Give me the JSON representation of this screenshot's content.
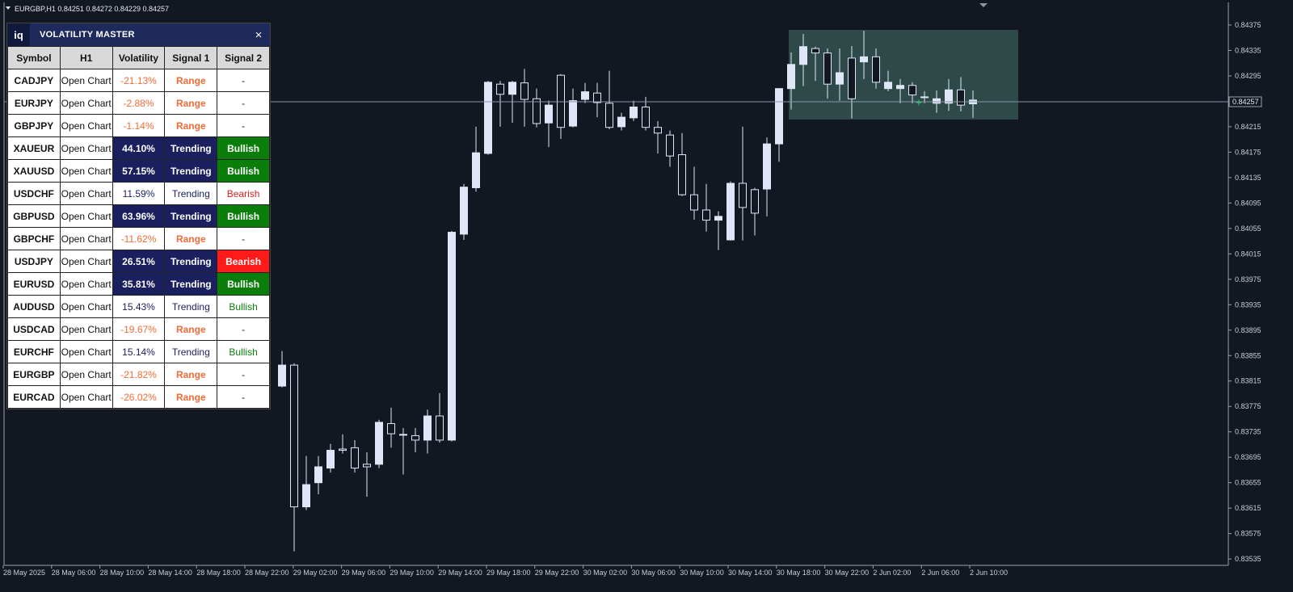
{
  "header": {
    "symbol_info": "EURGBP,H1 0.84251 0.84272 0.84229 0.84257",
    "current_price": "0.84257"
  },
  "panel": {
    "logo": "iq",
    "title": "VOLATILITY MASTER",
    "close": "×",
    "table": {
      "columns": [
        "Symbol",
        "H1",
        "Volatility",
        "Signal 1",
        "Signal 2"
      ],
      "rows": [
        [
          "CADJPY",
          "Open Chart",
          "-21.13%",
          "Range",
          "-"
        ],
        [
          "EURJPY",
          "Open Chart",
          "-2.88%",
          "Range",
          "-"
        ],
        [
          "GBPJPY",
          "Open Chart",
          "-1.14%",
          "Range",
          "-"
        ],
        [
          "XAUEUR",
          "Open Chart",
          "44.10%",
          "Trending",
          "Bullish"
        ],
        [
          "XAUUSD",
          "Open Chart",
          "57.15%",
          "Trending",
          "Bullish"
        ],
        [
          "USDCHF",
          "Open Chart",
          "11.59%",
          "Trending",
          "Bearish"
        ],
        [
          "GBPUSD",
          "Open Chart",
          "63.96%",
          "Trending",
          "Bullish"
        ],
        [
          "GBPCHF",
          "Open Chart",
          "-11.62%",
          "Range",
          "-"
        ],
        [
          "USDJPY",
          "Open Chart",
          "26.51%",
          "Trending",
          "Bearish"
        ],
        [
          "EURUSD",
          "Open Chart",
          "35.81%",
          "Trending",
          "Bullish"
        ],
        [
          "AUDUSD",
          "Open Chart",
          "15.43%",
          "Trending",
          "Bullish"
        ],
        [
          "USDCAD",
          "Open Chart",
          "-19.67%",
          "Range",
          "-"
        ],
        [
          "EURCHF",
          "Open Chart",
          "15.14%",
          "Trending",
          "Bullish"
        ],
        [
          "EURGBP",
          "Open Chart",
          "-21.82%",
          "Range",
          "-"
        ],
        [
          "EURCAD",
          "Open Chart",
          "-26.02%",
          "Range",
          "-"
        ]
      ]
    }
  },
  "chart": {
    "type": "candlestick",
    "ylim": [
      0.83525,
      0.84408
    ],
    "yticks": [
      0.84375,
      0.84335,
      0.84295,
      0.84215,
      0.84175,
      0.84135,
      0.84095,
      0.84055,
      0.84015,
      0.83975,
      0.83935,
      0.83895,
      0.83855,
      0.83815,
      0.83775,
      0.83735,
      0.83695,
      0.83655,
      0.83615,
      0.83575,
      0.83535
    ],
    "x_labels": [
      "28 May 2025",
      "28 May 06:00",
      "28 May 10:00",
      "28 May 14:00",
      "28 May 18:00",
      "28 May 22:00",
      "29 May 02:00",
      "29 May 06:00",
      "29 May 10:00",
      "29 May 14:00",
      "29 May 18:00",
      "29 May 22:00",
      "30 May 02:00",
      "30 May 06:00",
      "30 May 10:00",
      "30 May 14:00",
      "30 May 18:00",
      "30 May 22:00",
      "2 Jun 02:00",
      "2 Jun 06:00",
      "2 Jun 10:00"
    ],
    "bull_color": "#dfe6f7",
    "bear_color": "#131722",
    "outline_color": "#dfe6f7",
    "open": [
      0.83807,
      0.8384,
      0.83617,
      0.83655,
      0.83678,
      0.83708,
      0.8371,
      0.83684,
      0.83684,
      0.83748,
      0.83731,
      0.83729,
      0.83722,
      0.8376,
      0.83722,
      0.84046,
      0.84119,
      0.84173,
      0.84282,
      0.84266,
      0.84284,
      0.84259,
      0.84221,
      0.84296,
      0.84216,
      0.84258,
      0.84268,
      0.84252,
      0.84215,
      0.84229,
      0.84246,
      0.84214,
      0.84202,
      0.84171,
      0.84108,
      0.84084,
      0.84068,
      0.84037,
      0.84126,
      0.84116,
      0.84117,
      0.84188,
      0.84275,
      0.84313,
      0.84338,
      0.84331,
      0.84282,
      0.84323,
      0.84317,
      0.84325,
      0.84275,
      0.84275,
      0.8428,
      0.84262,
      0.84252,
      0.84252,
      0.84273,
      0.84251
    ],
    "high": [
      0.83862,
      0.83843,
      0.83697,
      0.83697,
      0.83716,
      0.83731,
      0.83722,
      0.83703,
      0.83754,
      0.83773,
      0.83741,
      0.83741,
      0.8377,
      0.83796,
      0.84051,
      0.84125,
      0.84215,
      0.84287,
      0.84287,
      0.84287,
      0.84306,
      0.84275,
      0.84256,
      0.84298,
      0.84275,
      0.84284,
      0.84284,
      0.84303,
      0.84237,
      0.84256,
      0.84262,
      0.84224,
      0.84209,
      0.84205,
      0.84152,
      0.84125,
      0.84082,
      0.84129,
      0.84215,
      0.84119,
      0.84198,
      0.84275,
      0.84332,
      0.84361,
      0.84341,
      0.84338,
      0.84338,
      0.84342,
      0.84366,
      0.84338,
      0.84303,
      0.8429,
      0.84285,
      0.84271,
      0.84272,
      0.8429,
      0.84293,
      0.84272
    ],
    "low": [
      0.83805,
      0.83547,
      0.83612,
      0.83637,
      0.83671,
      0.83701,
      0.83671,
      0.83633,
      0.83678,
      0.8371,
      0.83668,
      0.83703,
      0.83701,
      0.83718,
      0.8372,
      0.84037,
      0.84113,
      0.84171,
      0.84215,
      0.84221,
      0.84215,
      0.84214,
      0.84183,
      0.84196,
      0.84214,
      0.84252,
      0.8423,
      0.84211,
      0.84209,
      0.84224,
      0.84209,
      0.84173,
      0.84152,
      0.84106,
      0.84069,
      0.8405,
      0.84021,
      0.84036,
      0.84036,
      0.84044,
      0.84074,
      0.8416,
      0.84242,
      0.84279,
      0.84287,
      0.84259,
      0.84256,
      0.84228,
      0.8429,
      0.84275,
      0.84271,
      0.84252,
      0.84252,
      0.84252,
      0.84237,
      0.8424,
      0.84239,
      0.84229
    ],
    "close": [
      0.8384,
      0.83617,
      0.83652,
      0.8368,
      0.83706,
      0.83706,
      0.83678,
      0.8368,
      0.8375,
      0.83732,
      0.83731,
      0.83722,
      0.8376,
      0.83722,
      0.84049,
      0.8412,
      0.84174,
      0.84285,
      0.84266,
      0.84285,
      0.84258,
      0.8422,
      0.84249,
      0.84214,
      0.84256,
      0.8427,
      0.84253,
      0.84214,
      0.8423,
      0.84246,
      0.84214,
      0.84205,
      0.84169,
      0.84108,
      0.84084,
      0.84068,
      0.84074,
      0.84126,
      0.84088,
      0.84079,
      0.84188,
      0.84275,
      0.84313,
      0.84341,
      0.84331,
      0.84282,
      0.843,
      0.84259,
      0.84325,
      0.84285,
      0.84285,
      0.8428,
      0.84265,
      0.84262,
      0.84259,
      0.84273,
      0.84249,
      0.84257
    ]
  }
}
